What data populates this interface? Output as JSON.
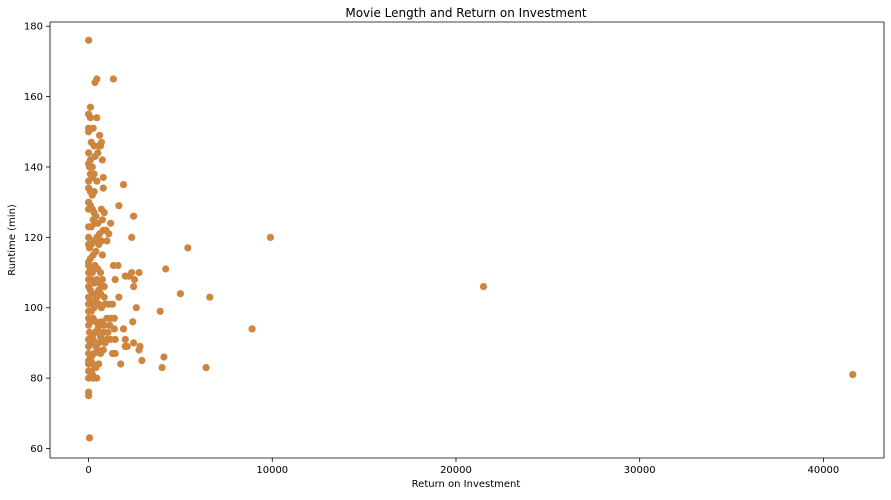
{
  "chart_data": {
    "type": "scatter",
    "title": "Movie Length and Return on Investment",
    "xlabel": "Return on Investment",
    "ylabel": "Runtime (min)",
    "xlim": [
      -2100,
      43300
    ],
    "ylim": [
      57.3,
      181.2
    ],
    "x_ticks": [
      0,
      10000,
      20000,
      30000,
      40000
    ],
    "y_ticks": [
      60,
      80,
      100,
      120,
      140,
      160,
      180
    ],
    "grid": false,
    "legend": "none",
    "marker_color": "#cd853f",
    "series": [
      {
        "points": [
          [
            0,
            176
          ],
          [
            100,
            157
          ],
          [
            0,
            155
          ],
          [
            450,
            165
          ],
          [
            350,
            164
          ],
          [
            1350,
            165
          ],
          [
            0,
            151
          ],
          [
            0,
            150
          ],
          [
            250,
            151
          ],
          [
            450,
            154
          ],
          [
            100,
            154
          ],
          [
            600,
            149
          ],
          [
            700,
            147
          ],
          [
            650,
            146
          ],
          [
            550,
            146
          ],
          [
            300,
            146
          ],
          [
            150,
            147
          ],
          [
            100,
            142
          ],
          [
            200,
            140
          ],
          [
            350,
            143
          ],
          [
            500,
            144
          ],
          [
            750,
            142
          ],
          [
            0,
            144
          ],
          [
            0,
            141
          ],
          [
            50,
            140
          ],
          [
            100,
            138
          ],
          [
            200,
            137
          ],
          [
            300,
            138
          ],
          [
            450,
            136
          ],
          [
            0,
            136
          ],
          [
            0,
            134
          ],
          [
            100,
            133
          ],
          [
            200,
            132
          ],
          [
            300,
            133
          ],
          [
            800,
            137
          ],
          [
            800,
            134
          ],
          [
            1900,
            135
          ],
          [
            0,
            130
          ],
          [
            0,
            128
          ],
          [
            100,
            129
          ],
          [
            200,
            128
          ],
          [
            300,
            127
          ],
          [
            400,
            126
          ],
          [
            700,
            128
          ],
          [
            850,
            127
          ],
          [
            750,
            125
          ],
          [
            500,
            124
          ],
          [
            350,
            124
          ],
          [
            250,
            125
          ],
          [
            150,
            123
          ],
          [
            0,
            123
          ],
          [
            1200,
            124
          ],
          [
            1650,
            129
          ],
          [
            2450,
            126
          ],
          [
            0,
            120
          ],
          [
            0,
            118
          ],
          [
            50,
            117
          ],
          [
            150,
            118
          ],
          [
            300,
            119
          ],
          [
            450,
            120
          ],
          [
            600,
            121
          ],
          [
            800,
            122
          ],
          [
            950,
            122
          ],
          [
            1100,
            121
          ],
          [
            700,
            119
          ],
          [
            550,
            118
          ],
          [
            400,
            116
          ],
          [
            250,
            115
          ],
          [
            100,
            114
          ],
          [
            0,
            113
          ],
          [
            1000,
            119
          ],
          [
            2350,
            120
          ],
          [
            0,
            112
          ],
          [
            0,
            110
          ],
          [
            100,
            111
          ],
          [
            200,
            110
          ],
          [
            350,
            112
          ],
          [
            500,
            111
          ],
          [
            650,
            110
          ],
          [
            750,
            108
          ],
          [
            600,
            107
          ],
          [
            450,
            108
          ],
          [
            300,
            107
          ],
          [
            150,
            108
          ],
          [
            0,
            108
          ],
          [
            0,
            106
          ],
          [
            100,
            105
          ],
          [
            200,
            104
          ],
          [
            400,
            104
          ],
          [
            550,
            105
          ],
          [
            700,
            106
          ],
          [
            850,
            106
          ],
          [
            750,
            115
          ],
          [
            0,
            103
          ],
          [
            0,
            101
          ],
          [
            100,
            102
          ],
          [
            250,
            101
          ],
          [
            400,
            102
          ],
          [
            550,
            101
          ],
          [
            700,
            100
          ],
          [
            900,
            101
          ],
          [
            1100,
            101
          ],
          [
            1300,
            101
          ],
          [
            850,
            103
          ],
          [
            650,
            104
          ],
          [
            450,
            103
          ],
          [
            300,
            100
          ],
          [
            150,
            99
          ],
          [
            0,
            99
          ],
          [
            0,
            97
          ],
          [
            0,
            95
          ],
          [
            100,
            96
          ],
          [
            250,
            97
          ],
          [
            400,
            96
          ],
          [
            550,
            95
          ],
          [
            700,
            96
          ],
          [
            850,
            95
          ],
          [
            1000,
            97
          ],
          [
            1200,
            97
          ],
          [
            1400,
            97
          ],
          [
            1050,
            93
          ],
          [
            800,
            93
          ],
          [
            650,
            92
          ],
          [
            500,
            94
          ],
          [
            350,
            93
          ],
          [
            200,
            92
          ],
          [
            50,
            93
          ],
          [
            0,
            91
          ],
          [
            0,
            89
          ],
          [
            100,
            90
          ],
          [
            250,
            91
          ],
          [
            400,
            89
          ],
          [
            550,
            90
          ],
          [
            700,
            91
          ],
          [
            900,
            90
          ],
          [
            1000,
            91
          ],
          [
            1200,
            91
          ],
          [
            1450,
            91
          ],
          [
            800,
            88
          ],
          [
            650,
            87
          ],
          [
            500,
            88
          ],
          [
            300,
            87
          ],
          [
            150,
            86
          ],
          [
            0,
            87
          ],
          [
            0,
            85
          ],
          [
            0,
            84
          ],
          [
            100,
            85
          ],
          [
            250,
            84
          ],
          [
            400,
            83
          ],
          [
            550,
            84
          ],
          [
            0,
            82
          ],
          [
            150,
            82
          ],
          [
            350,
            83
          ],
          [
            200,
            81
          ],
          [
            250,
            80
          ],
          [
            450,
            80
          ],
          [
            0,
            80
          ],
          [
            1350,
            112
          ],
          [
            1600,
            112
          ],
          [
            2000,
            109
          ],
          [
            2350,
            110
          ],
          [
            2500,
            108
          ],
          [
            2750,
            110
          ],
          [
            2450,
            106
          ],
          [
            2200,
            109
          ],
          [
            1450,
            108
          ],
          [
            1650,
            103
          ],
          [
            2600,
            100
          ],
          [
            2400,
            96
          ],
          [
            1900,
            94
          ],
          [
            1400,
            94
          ],
          [
            1150,
            95
          ],
          [
            2000,
            91
          ],
          [
            2800,
            89
          ],
          [
            2750,
            88
          ],
          [
            2450,
            90
          ],
          [
            2000,
            89
          ],
          [
            2100,
            89
          ],
          [
            1450,
            87
          ],
          [
            1300,
            87
          ],
          [
            1750,
            84
          ],
          [
            2900,
            85
          ],
          [
            0,
            76
          ],
          [
            0,
            75
          ],
          [
            50,
            63
          ],
          [
            3900,
            99
          ],
          [
            4200,
            111
          ],
          [
            4100,
            86
          ],
          [
            4000,
            83
          ],
          [
            5000,
            104
          ],
          [
            5400,
            117
          ],
          [
            6400,
            83
          ],
          [
            6600,
            103
          ],
          [
            8900,
            94
          ],
          [
            9900,
            120
          ],
          [
            21500,
            106
          ],
          [
            41600,
            81
          ]
        ]
      }
    ]
  }
}
